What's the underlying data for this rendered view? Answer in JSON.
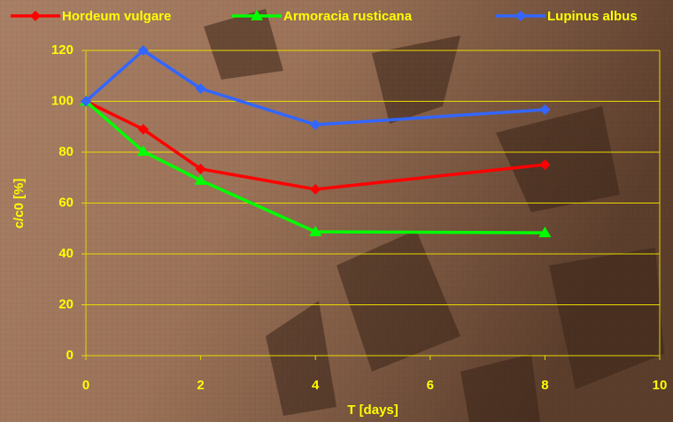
{
  "chart_data": {
    "type": "line",
    "x_label": "T [days]",
    "y_label": "c/c0 [%]",
    "x": [
      0,
      1,
      2,
      4,
      8
    ],
    "series": [
      {
        "name": "Hordeum vulgare",
        "color": "#ff0000",
        "marker": "diamond",
        "values": [
          100,
          89,
          73.4,
          65.4,
          75.1
        ]
      },
      {
        "name": "Armoracia rusticana",
        "color": "#00ff00",
        "marker": "triangle",
        "values": [
          100,
          80.3,
          68.9,
          48.7,
          48.3
        ]
      },
      {
        "name": "Lupinus albus",
        "color": "#3366ff",
        "marker": "diamond",
        "values": [
          100,
          120,
          105,
          90.8,
          96.7
        ]
      }
    ],
    "xlim": [
      0,
      10
    ],
    "xticks": [
      0,
      2,
      4,
      6,
      8,
      10
    ],
    "ylim": [
      0,
      120
    ],
    "yticks": [
      0,
      20,
      40,
      60,
      80,
      100,
      120
    ],
    "grid": true
  }
}
